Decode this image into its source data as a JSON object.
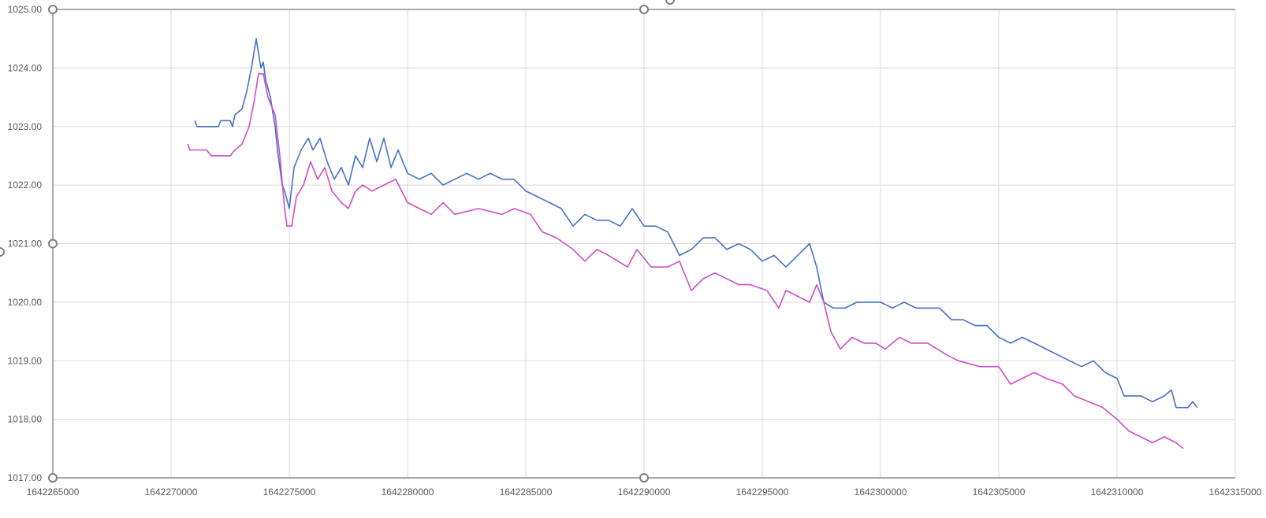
{
  "chart_data": {
    "type": "scatter",
    "title": "",
    "xlabel": "",
    "ylabel": "",
    "xlim": [
      1642265000,
      1642315000
    ],
    "ylim": [
      1017.0,
      1025.0
    ],
    "grid": true,
    "legend": "none",
    "x_ticks": [
      "1642265000",
      "1642270000",
      "1642275000",
      "1642280000",
      "1642285000",
      "1642290000",
      "1642295000",
      "1642300000",
      "1642305000",
      "1642310000",
      "1642315000"
    ],
    "y_ticks": [
      "1017.00",
      "1018.00",
      "1019.00",
      "1020.00",
      "1021.00",
      "1022.00",
      "1023.00",
      "1024.00",
      "1025.00"
    ],
    "series": [
      {
        "color": "#4472c4",
        "points": [
          [
            1642271000,
            1023.1
          ],
          [
            1642271100,
            1023.0
          ],
          [
            1642272000,
            1023.0
          ],
          [
            1642272100,
            1023.1
          ],
          [
            1642272500,
            1023.1
          ],
          [
            1642272600,
            1023.0
          ],
          [
            1642272700,
            1023.2
          ],
          [
            1642273000,
            1023.3
          ],
          [
            1642273200,
            1023.6
          ],
          [
            1642273400,
            1024.0
          ],
          [
            1642273600,
            1024.5
          ],
          [
            1642273800,
            1024.0
          ],
          [
            1642273900,
            1024.1
          ],
          [
            1642274000,
            1023.8
          ],
          [
            1642274200,
            1023.5
          ],
          [
            1642274400,
            1023.0
          ],
          [
            1642274500,
            1022.6
          ],
          [
            1642274700,
            1022.0
          ],
          [
            1642274800,
            1021.9
          ],
          [
            1642275000,
            1021.6
          ],
          [
            1642275200,
            1022.3
          ],
          [
            1642275500,
            1022.6
          ],
          [
            1642275800,
            1022.8
          ],
          [
            1642276000,
            1022.6
          ],
          [
            1642276300,
            1022.8
          ],
          [
            1642276600,
            1022.4
          ],
          [
            1642276900,
            1022.1
          ],
          [
            1642277200,
            1022.3
          ],
          [
            1642277500,
            1022.0
          ],
          [
            1642277800,
            1022.5
          ],
          [
            1642278100,
            1022.3
          ],
          [
            1642278400,
            1022.8
          ],
          [
            1642278700,
            1022.4
          ],
          [
            1642279000,
            1022.8
          ],
          [
            1642279300,
            1022.3
          ],
          [
            1642279600,
            1022.6
          ],
          [
            1642280000,
            1022.2
          ],
          [
            1642280500,
            1022.1
          ],
          [
            1642281000,
            1022.2
          ],
          [
            1642281500,
            1022.0
          ],
          [
            1642282000,
            1022.1
          ],
          [
            1642282500,
            1022.2
          ],
          [
            1642283000,
            1022.1
          ],
          [
            1642283500,
            1022.2
          ],
          [
            1642284000,
            1022.1
          ],
          [
            1642284500,
            1022.1
          ],
          [
            1642285000,
            1021.9
          ],
          [
            1642285500,
            1021.8
          ],
          [
            1642286000,
            1021.7
          ],
          [
            1642286500,
            1021.6
          ],
          [
            1642287000,
            1021.3
          ],
          [
            1642287500,
            1021.5
          ],
          [
            1642288000,
            1021.4
          ],
          [
            1642288500,
            1021.4
          ],
          [
            1642289000,
            1021.3
          ],
          [
            1642289500,
            1021.6
          ],
          [
            1642290000,
            1021.3
          ],
          [
            1642290500,
            1021.3
          ],
          [
            1642291000,
            1021.2
          ],
          [
            1642291500,
            1020.8
          ],
          [
            1642292000,
            1020.9
          ],
          [
            1642292500,
            1021.1
          ],
          [
            1642293000,
            1021.1
          ],
          [
            1642293500,
            1020.9
          ],
          [
            1642294000,
            1021.0
          ],
          [
            1642294500,
            1020.9
          ],
          [
            1642295000,
            1020.7
          ],
          [
            1642295500,
            1020.8
          ],
          [
            1642296000,
            1020.6
          ],
          [
            1642296500,
            1020.8
          ],
          [
            1642297000,
            1021.0
          ],
          [
            1642297300,
            1020.6
          ],
          [
            1642297600,
            1020.0
          ],
          [
            1642298000,
            1019.9
          ],
          [
            1642298500,
            1019.9
          ],
          [
            1642299000,
            1020.0
          ],
          [
            1642299500,
            1020.0
          ],
          [
            1642300000,
            1020.0
          ],
          [
            1642300500,
            1019.9
          ],
          [
            1642301000,
            1020.0
          ],
          [
            1642301500,
            1019.9
          ],
          [
            1642302000,
            1019.9
          ],
          [
            1642302500,
            1019.9
          ],
          [
            1642303000,
            1019.7
          ],
          [
            1642303500,
            1019.7
          ],
          [
            1642304000,
            1019.6
          ],
          [
            1642304500,
            1019.6
          ],
          [
            1642305000,
            1019.4
          ],
          [
            1642305500,
            1019.3
          ],
          [
            1642306000,
            1019.4
          ],
          [
            1642306500,
            1019.3
          ],
          [
            1642307000,
            1019.2
          ],
          [
            1642307500,
            1019.1
          ],
          [
            1642308000,
            1019.0
          ],
          [
            1642308500,
            1018.9
          ],
          [
            1642309000,
            1019.0
          ],
          [
            1642309500,
            1018.8
          ],
          [
            1642310000,
            1018.7
          ],
          [
            1642310300,
            1018.4
          ],
          [
            1642310600,
            1018.4
          ],
          [
            1642311000,
            1018.4
          ],
          [
            1642311500,
            1018.3
          ],
          [
            1642312000,
            1018.4
          ],
          [
            1642312300,
            1018.5
          ],
          [
            1642312500,
            1018.2
          ],
          [
            1642313000,
            1018.2
          ],
          [
            1642313200,
            1018.3
          ],
          [
            1642313400,
            1018.2
          ]
        ]
      },
      {
        "color": "#cc4fc4",
        "points": [
          [
            1642270700,
            1022.7
          ],
          [
            1642270800,
            1022.6
          ],
          [
            1642271500,
            1022.6
          ],
          [
            1642271700,
            1022.5
          ],
          [
            1642272500,
            1022.5
          ],
          [
            1642272700,
            1022.6
          ],
          [
            1642273000,
            1022.7
          ],
          [
            1642273300,
            1023.0
          ],
          [
            1642273500,
            1023.4
          ],
          [
            1642273700,
            1023.9
          ],
          [
            1642273900,
            1023.9
          ],
          [
            1642274100,
            1023.5
          ],
          [
            1642274400,
            1023.2
          ],
          [
            1642274600,
            1022.5
          ],
          [
            1642274800,
            1021.6
          ],
          [
            1642274900,
            1021.3
          ],
          [
            1642275100,
            1021.3
          ],
          [
            1642275300,
            1021.8
          ],
          [
            1642275600,
            1022.0
          ],
          [
            1642275900,
            1022.4
          ],
          [
            1642276200,
            1022.1
          ],
          [
            1642276500,
            1022.3
          ],
          [
            1642276800,
            1021.9
          ],
          [
            1642277200,
            1021.7
          ],
          [
            1642277500,
            1021.6
          ],
          [
            1642277800,
            1021.9
          ],
          [
            1642278100,
            1022.0
          ],
          [
            1642278500,
            1021.9
          ],
          [
            1642279000,
            1022.0
          ],
          [
            1642279500,
            1022.1
          ],
          [
            1642280000,
            1021.7
          ],
          [
            1642280500,
            1021.6
          ],
          [
            1642281000,
            1021.5
          ],
          [
            1642281500,
            1021.7
          ],
          [
            1642282000,
            1021.5
          ],
          [
            1642283000,
            1021.6
          ],
          [
            1642284000,
            1021.5
          ],
          [
            1642284500,
            1021.6
          ],
          [
            1642285200,
            1021.5
          ],
          [
            1642285700,
            1021.2
          ],
          [
            1642286300,
            1021.1
          ],
          [
            1642287000,
            1020.9
          ],
          [
            1642287500,
            1020.7
          ],
          [
            1642288000,
            1020.9
          ],
          [
            1642288500,
            1020.8
          ],
          [
            1642289300,
            1020.6
          ],
          [
            1642289700,
            1020.9
          ],
          [
            1642290300,
            1020.6
          ],
          [
            1642291000,
            1020.6
          ],
          [
            1642291500,
            1020.7
          ],
          [
            1642292000,
            1020.2
          ],
          [
            1642292500,
            1020.4
          ],
          [
            1642293000,
            1020.5
          ],
          [
            1642293500,
            1020.4
          ],
          [
            1642294000,
            1020.3
          ],
          [
            1642294500,
            1020.3
          ],
          [
            1642295200,
            1020.2
          ],
          [
            1642295700,
            1019.9
          ],
          [
            1642296000,
            1020.2
          ],
          [
            1642296500,
            1020.1
          ],
          [
            1642297000,
            1020.0
          ],
          [
            1642297300,
            1020.3
          ],
          [
            1642297600,
            1020.0
          ],
          [
            1642297900,
            1019.5
          ],
          [
            1642298300,
            1019.2
          ],
          [
            1642298800,
            1019.4
          ],
          [
            1642299300,
            1019.3
          ],
          [
            1642299800,
            1019.3
          ],
          [
            1642300200,
            1019.2
          ],
          [
            1642300800,
            1019.4
          ],
          [
            1642301300,
            1019.3
          ],
          [
            1642302000,
            1019.3
          ],
          [
            1642302800,
            1019.1
          ],
          [
            1642303300,
            1019.0
          ],
          [
            1642304200,
            1018.9
          ],
          [
            1642305000,
            1018.9
          ],
          [
            1642305500,
            1018.6
          ],
          [
            1642306000,
            1018.7
          ],
          [
            1642306500,
            1018.8
          ],
          [
            1642307000,
            1018.7
          ],
          [
            1642307700,
            1018.6
          ],
          [
            1642308200,
            1018.4
          ],
          [
            1642308800,
            1018.3
          ],
          [
            1642309400,
            1018.2
          ],
          [
            1642310000,
            1018.0
          ],
          [
            1642310500,
            1017.8
          ],
          [
            1642311000,
            1017.7
          ],
          [
            1642311500,
            1017.6
          ],
          [
            1642312000,
            1017.7
          ],
          [
            1642312500,
            1017.6
          ],
          [
            1642312800,
            1017.5
          ]
        ]
      }
    ]
  }
}
